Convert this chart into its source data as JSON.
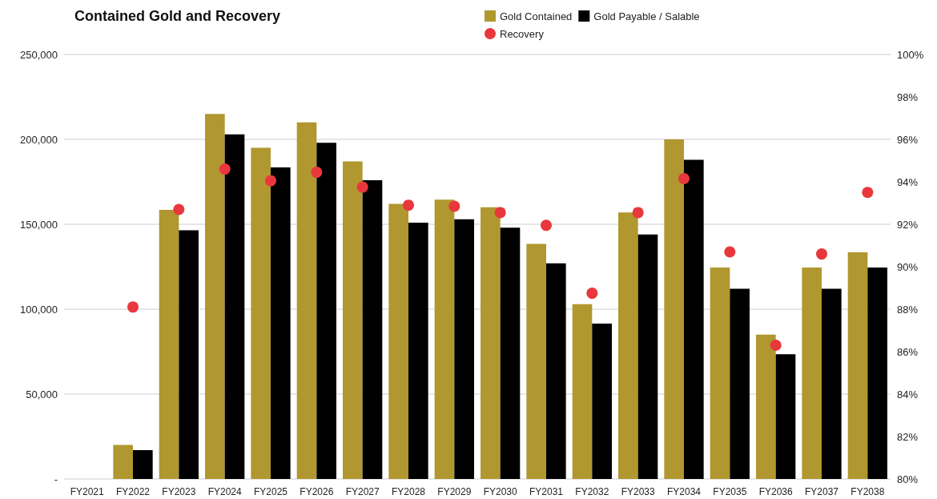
{
  "chart_data": {
    "type": "bar",
    "title": "Contained Gold and Recovery",
    "categories": [
      "FY2021",
      "FY2022",
      "FY2023",
      "FY2024",
      "FY2025",
      "FY2026",
      "FY2027",
      "FY2028",
      "FY2029",
      "FY2030",
      "FY2031",
      "FY2032",
      "FY2033",
      "FY2034",
      "FY2035",
      "FY2036",
      "FY2037",
      "FY2038"
    ],
    "series": [
      {
        "name": "Gold Contained",
        "color": "#b1972f",
        "values": [
          0,
          20000,
          158500,
          215000,
          195000,
          210000,
          187000,
          162000,
          164500,
          160000,
          138500,
          103000,
          157000,
          200000,
          124500,
          85000,
          124500,
          133500
        ]
      },
      {
        "name": "Gold Payable / Salable",
        "color": "#000000",
        "values": [
          0,
          17000,
          146500,
          203000,
          183500,
          198000,
          176000,
          151000,
          153000,
          148000,
          127000,
          91500,
          144000,
          188000,
          112000,
          73500,
          112000,
          124500
        ]
      },
      {
        "name": "Recovery",
        "type": "scatter",
        "axis": "y2",
        "color": "#e8383d",
        "values": [
          null,
          88.1,
          92.7,
          94.6,
          94.05,
          94.45,
          93.75,
          92.9,
          92.85,
          92.55,
          91.95,
          88.75,
          92.55,
          94.15,
          90.7,
          86.3,
          90.6,
          93.5
        ]
      }
    ],
    "ylim": [
      0,
      250000
    ],
    "yticks": [
      {
        "value": 0,
        "label": "-"
      },
      {
        "value": 50000,
        "label": "50,000"
      },
      {
        "value": 100000,
        "label": "100,000"
      },
      {
        "value": 150000,
        "label": "150,000"
      },
      {
        "value": 200000,
        "label": "200,000"
      },
      {
        "value": 250000,
        "label": "250,000"
      }
    ],
    "y2lim": [
      80,
      100
    ],
    "y2ticks": [
      {
        "value": 80,
        "label": "80%"
      },
      {
        "value": 82,
        "label": "82%"
      },
      {
        "value": 84,
        "label": "84%"
      },
      {
        "value": 86,
        "label": "86%"
      },
      {
        "value": 88,
        "label": "88%"
      },
      {
        "value": 90,
        "label": "90%"
      },
      {
        "value": 92,
        "label": "92%"
      },
      {
        "value": 94,
        "label": "94%"
      },
      {
        "value": 96,
        "label": "96%"
      },
      {
        "value": 98,
        "label": "98%"
      },
      {
        "value": 100,
        "label": "100%"
      }
    ],
    "grid": "y",
    "legend": "top right",
    "marker": "circle"
  }
}
